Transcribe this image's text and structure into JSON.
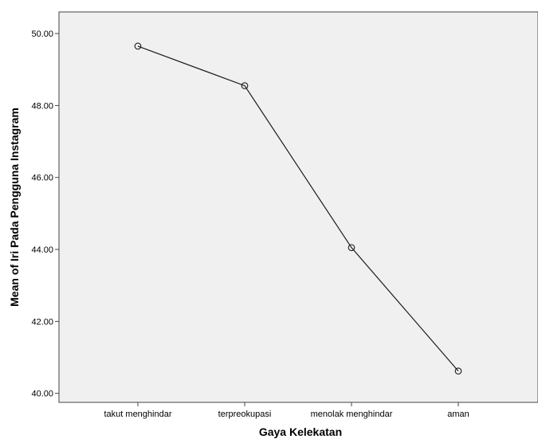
{
  "chart_data": {
    "type": "line",
    "title": "",
    "xlabel": "Gaya Kelekatan",
    "ylabel": "Mean of Iri Pada Pengguna Instagram",
    "categories": [
      "takut menghindar",
      "terpreokupasi",
      "menolak menghindar",
      "aman"
    ],
    "series": [
      {
        "values": [
          49.65,
          48.55,
          44.05,
          40.62
        ]
      }
    ],
    "ylim": [
      39.75,
      50.6
    ],
    "yticks": [
      "40.00",
      "42.00",
      "44.00",
      "46.00",
      "48.00",
      "50.00"
    ],
    "grid": false,
    "legend": "none",
    "colors": {
      "plot_background": "#f0f0f0",
      "line": "#1a1a1a",
      "marker": "#1a1a1a"
    }
  }
}
